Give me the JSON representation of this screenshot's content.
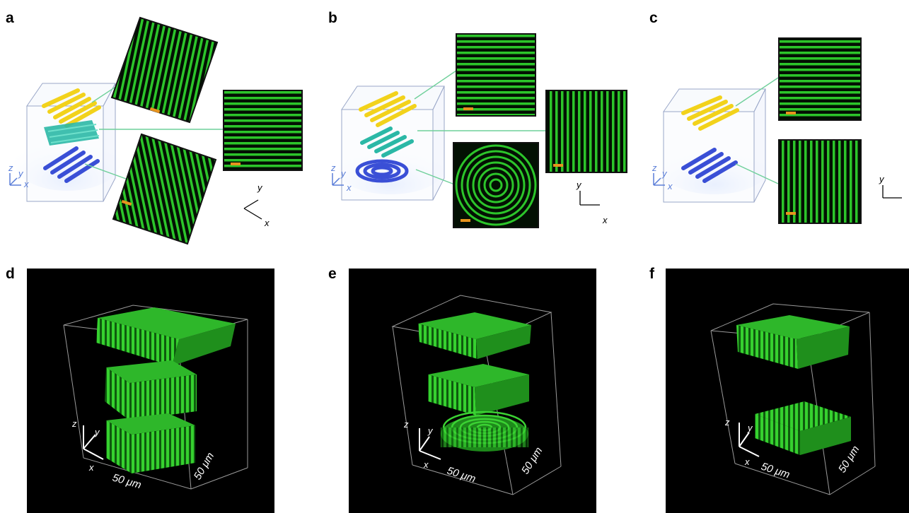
{
  "figure": {
    "panel_labels": {
      "a": "a",
      "b": "b",
      "c": "c",
      "d": "d",
      "e": "e",
      "f": "f"
    },
    "axes": {
      "x": "x",
      "y": "y",
      "z": "z"
    },
    "scale_label": "50 μm",
    "colors": {
      "fluorescence_green": "#22c51f",
      "dark_background": "#000000",
      "top_layer_yellow": "#f2d21b",
      "middle_layer_teal": "#2bb8a6",
      "bottom_layer_blue": "#3a4fd6",
      "axis_blue": "#5a7ed8",
      "scale_bar_orange": "#e7931d",
      "connector_green": "#6fd09a"
    }
  }
}
